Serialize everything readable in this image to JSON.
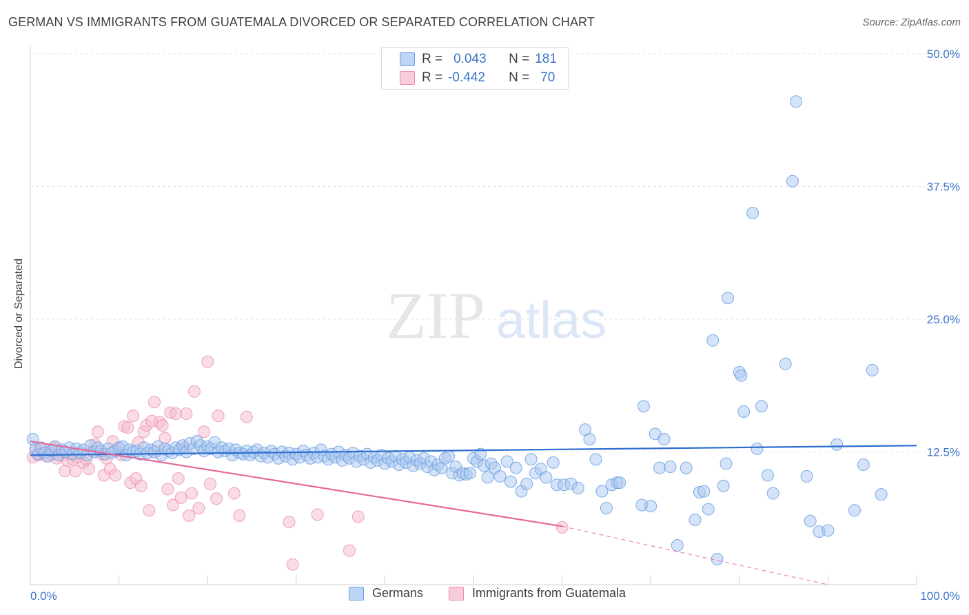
{
  "title": "GERMAN VS IMMIGRANTS FROM GUATEMALA DIVORCED OR SEPARATED CORRELATION CHART",
  "source": "Source: ZipAtlas.com",
  "watermark": {
    "zip": "ZIP",
    "atlas": "atlas"
  },
  "colors": {
    "blue_fill": "#a9c8f0",
    "blue_stroke": "#6b9fe0",
    "blue_line": "#2f6fd0",
    "pink_fill": "#f6b9cc",
    "pink_stroke": "#eb8dab",
    "pink_line": "#e5689a",
    "axis_label": "#3b73c9"
  },
  "legend": {
    "rows": [
      {
        "r_label": "R =",
        "r_value": "0.043",
        "n_label": "N =",
        "n_value": "181"
      },
      {
        "r_label": "R =",
        "r_value": "-0.442",
        "n_label": "N =",
        "n_value": "70"
      }
    ]
  },
  "bottom_legend": {
    "germans": "Germans",
    "guatemala": "Immigrants from Guatemala"
  },
  "chart_data": {
    "type": "scatter",
    "title": "GERMAN VS IMMIGRANTS FROM GUATEMALA DIVORCED OR SEPARATED CORRELATION CHART",
    "ylabel": "Divorced or Separated",
    "xlabel": "",
    "xlim": [
      0,
      100
    ],
    "ylim": [
      0,
      50
    ],
    "x_tick_labels": [
      "0.0%",
      "100.0%"
    ],
    "y_tick_labels": [
      "12.5%",
      "25.0%",
      "37.5%",
      "50.0%"
    ],
    "y_ticks": [
      12.5,
      25.0,
      37.5,
      50.0
    ],
    "grid": true,
    "legend_position": "top-center",
    "series": [
      {
        "name": "Germans",
        "r": 0.043,
        "n": 181,
        "trend": {
          "x": [
            0,
            100
          ],
          "y": [
            12.2,
            13.1
          ]
        },
        "points": [
          [
            0.3,
            13.7
          ],
          [
            0.6,
            12.8
          ],
          [
            0.9,
            12.3
          ],
          [
            1.2,
            12.9
          ],
          [
            1.6,
            12.4
          ],
          [
            2.0,
            12.1
          ],
          [
            2.4,
            12.6
          ],
          [
            2.8,
            13.0
          ],
          [
            3.2,
            12.2
          ],
          [
            3.6,
            12.7
          ],
          [
            4.0,
            12.5
          ],
          [
            4.4,
            12.9
          ],
          [
            4.8,
            12.3
          ],
          [
            5.2,
            12.8
          ],
          [
            5.6,
            12.4
          ],
          [
            6.0,
            12.7
          ],
          [
            6.4,
            12.2
          ],
          [
            6.8,
            13.1
          ],
          [
            7.2,
            12.5
          ],
          [
            7.6,
            12.9
          ],
          [
            8.0,
            12.6
          ],
          [
            8.4,
            12.3
          ],
          [
            8.8,
            12.8
          ],
          [
            9.2,
            12.4
          ],
          [
            9.6,
            12.6
          ],
          [
            10.0,
            12.9
          ],
          [
            10.4,
            13.0
          ],
          [
            10.8,
            12.2
          ],
          [
            11.2,
            12.7
          ],
          [
            11.6,
            12.5
          ],
          [
            12.0,
            12.6
          ],
          [
            12.4,
            12.3
          ],
          [
            12.8,
            12.9
          ],
          [
            13.2,
            12.4
          ],
          [
            13.6,
            12.7
          ],
          [
            14.0,
            12.5
          ],
          [
            14.4,
            13.0
          ],
          [
            14.8,
            12.2
          ],
          [
            15.2,
            12.8
          ],
          [
            15.6,
            12.6
          ],
          [
            16.0,
            12.4
          ],
          [
            16.4,
            12.9
          ],
          [
            16.8,
            12.7
          ],
          [
            17.2,
            13.1
          ],
          [
            17.6,
            12.5
          ],
          [
            18.0,
            13.3
          ],
          [
            18.4,
            12.8
          ],
          [
            18.8,
            13.5
          ],
          [
            19.2,
            13.1
          ],
          [
            19.6,
            12.6
          ],
          [
            20.0,
            13.0
          ],
          [
            20.4,
            12.8
          ],
          [
            20.8,
            13.4
          ],
          [
            21.2,
            12.5
          ],
          [
            21.6,
            12.9
          ],
          [
            22.0,
            12.6
          ],
          [
            22.4,
            12.8
          ],
          [
            22.8,
            12.2
          ],
          [
            23.2,
            12.7
          ],
          [
            23.6,
            12.4
          ],
          [
            24.0,
            12.3
          ],
          [
            24.4,
            12.6
          ],
          [
            24.8,
            12.2
          ],
          [
            25.2,
            12.5
          ],
          [
            25.6,
            12.7
          ],
          [
            26.0,
            12.1
          ],
          [
            26.4,
            12.4
          ],
          [
            26.8,
            12.0
          ],
          [
            27.2,
            12.6
          ],
          [
            27.6,
            12.3
          ],
          [
            28.0,
            11.9
          ],
          [
            28.4,
            12.5
          ],
          [
            28.8,
            12.1
          ],
          [
            29.2,
            12.4
          ],
          [
            29.6,
            11.8
          ],
          [
            30.0,
            12.3
          ],
          [
            30.4,
            12.0
          ],
          [
            30.8,
            12.6
          ],
          [
            31.2,
            12.2
          ],
          [
            31.6,
            11.9
          ],
          [
            32.0,
            12.4
          ],
          [
            32.4,
            12.0
          ],
          [
            32.8,
            12.7
          ],
          [
            33.2,
            12.1
          ],
          [
            33.6,
            11.8
          ],
          [
            34.0,
            12.3
          ],
          [
            34.4,
            12.0
          ],
          [
            34.8,
            12.5
          ],
          [
            35.2,
            11.7
          ],
          [
            35.6,
            12.2
          ],
          [
            36.0,
            11.9
          ],
          [
            36.4,
            12.4
          ],
          [
            36.8,
            11.6
          ],
          [
            37.2,
            12.1
          ],
          [
            37.6,
            11.8
          ],
          [
            38.0,
            12.3
          ],
          [
            38.4,
            11.5
          ],
          [
            38.8,
            12.0
          ],
          [
            39.2,
            11.7
          ],
          [
            39.6,
            12.2
          ],
          [
            40.0,
            11.4
          ],
          [
            40.4,
            11.9
          ],
          [
            40.8,
            11.6
          ],
          [
            41.2,
            12.1
          ],
          [
            41.6,
            11.3
          ],
          [
            42.0,
            11.8
          ],
          [
            42.4,
            11.5
          ],
          [
            42.8,
            12.0
          ],
          [
            43.2,
            11.2
          ],
          [
            43.6,
            11.7
          ],
          [
            44.0,
            11.4
          ],
          [
            44.4,
            11.9
          ],
          [
            44.8,
            11.1
          ],
          [
            45.2,
            11.6
          ],
          [
            45.6,
            10.8
          ],
          [
            46.0,
            11.3
          ],
          [
            46.4,
            11.0
          ],
          [
            46.8,
            11.9
          ],
          [
            47.2,
            12.1
          ],
          [
            47.6,
            10.5
          ],
          [
            48.0,
            11.1
          ],
          [
            48.4,
            10.3
          ],
          [
            48.8,
            10.5
          ],
          [
            49.2,
            10.4
          ],
          [
            49.6,
            10.5
          ],
          [
            50.0,
            11.9
          ],
          [
            50.4,
            11.6
          ],
          [
            50.8,
            12.3
          ],
          [
            51.2,
            11.2
          ],
          [
            51.6,
            10.1
          ],
          [
            52.0,
            11.4
          ],
          [
            52.4,
            11.0
          ],
          [
            53.0,
            10.2
          ],
          [
            53.8,
            11.6
          ],
          [
            54.2,
            9.7
          ],
          [
            54.8,
            11.0
          ],
          [
            55.4,
            8.8
          ],
          [
            56.0,
            9.5
          ],
          [
            56.5,
            11.8
          ],
          [
            57.0,
            10.5
          ],
          [
            57.6,
            10.9
          ],
          [
            58.2,
            10.1
          ],
          [
            59.0,
            11.5
          ],
          [
            59.4,
            9.4
          ],
          [
            60.2,
            9.4
          ],
          [
            61.0,
            9.5
          ],
          [
            61.8,
            9.1
          ],
          [
            62.6,
            14.6
          ],
          [
            63.1,
            13.7
          ],
          [
            63.8,
            11.8
          ],
          [
            64.5,
            8.8
          ],
          [
            65.0,
            7.2
          ],
          [
            65.6,
            9.4
          ],
          [
            66.2,
            9.6
          ],
          [
            66.5,
            9.6
          ],
          [
            69.0,
            7.5
          ],
          [
            69.2,
            16.8
          ],
          [
            70.0,
            7.4
          ],
          [
            70.5,
            14.2
          ],
          [
            71.0,
            11.0
          ],
          [
            71.5,
            13.7
          ],
          [
            72.2,
            11.1
          ],
          [
            73.0,
            3.7
          ],
          [
            74.0,
            11.0
          ],
          [
            75.0,
            6.1
          ],
          [
            75.5,
            8.7
          ],
          [
            76.0,
            8.8
          ],
          [
            76.5,
            7.1
          ],
          [
            77.0,
            23.0
          ],
          [
            77.5,
            2.4
          ],
          [
            78.2,
            9.3
          ],
          [
            78.5,
            11.4
          ],
          [
            78.7,
            27.0
          ],
          [
            80.0,
            20.0
          ],
          [
            80.2,
            19.7
          ],
          [
            80.5,
            16.3
          ],
          [
            81.5,
            35.0
          ],
          [
            82.0,
            12.8
          ],
          [
            82.5,
            16.8
          ],
          [
            83.2,
            10.3
          ],
          [
            85.2,
            20.8
          ],
          [
            86.0,
            38.0
          ],
          [
            86.4,
            45.5
          ],
          [
            88.0,
            6.0
          ],
          [
            89.0,
            5.0
          ],
          [
            91.0,
            13.2
          ],
          [
            93.0,
            7.0
          ],
          [
            94.0,
            11.3
          ],
          [
            95.0,
            20.2
          ],
          [
            96.0,
            8.5
          ],
          [
            83.8,
            8.6
          ],
          [
            87.6,
            10.2
          ],
          [
            90.0,
            5.1
          ]
        ]
      },
      {
        "name": "Immigrants from Guatemala",
        "r": -0.442,
        "n": 70,
        "trend": {
          "x": [
            0,
            60
          ],
          "y": [
            13.5,
            5.5
          ],
          "dashed_extension": {
            "x": [
              60,
              90
            ],
            "y": [
              5.5,
              0.0
            ]
          }
        },
        "points": [
          [
            0.3,
            12.0
          ],
          [
            0.6,
            12.6
          ],
          [
            0.9,
            12.2
          ],
          [
            1.2,
            12.8
          ],
          [
            1.5,
            12.4
          ],
          [
            1.8,
            12.1
          ],
          [
            2.1,
            12.7
          ],
          [
            2.4,
            12.3
          ],
          [
            2.7,
            12.9
          ],
          [
            3.0,
            11.9
          ],
          [
            3.3,
            12.5
          ],
          [
            3.6,
            12.2
          ],
          [
            3.9,
            10.7
          ],
          [
            4.2,
            11.7
          ],
          [
            4.5,
            12.3
          ],
          [
            4.8,
            11.8
          ],
          [
            5.1,
            10.7
          ],
          [
            5.4,
            12.0
          ],
          [
            5.7,
            12.4
          ],
          [
            6.0,
            11.5
          ],
          [
            6.3,
            11.8
          ],
          [
            6.6,
            10.9
          ],
          [
            7.0,
            12.6
          ],
          [
            7.3,
            13.2
          ],
          [
            7.6,
            14.4
          ],
          [
            8.0,
            12.3
          ],
          [
            8.3,
            10.3
          ],
          [
            8.6,
            11.9
          ],
          [
            9.0,
            10.9
          ],
          [
            9.3,
            13.5
          ],
          [
            9.6,
            10.3
          ],
          [
            10.0,
            12.9
          ],
          [
            10.3,
            12.2
          ],
          [
            10.6,
            14.9
          ],
          [
            11.0,
            14.8
          ],
          [
            11.3,
            9.6
          ],
          [
            11.6,
            15.9
          ],
          [
            11.9,
            10.0
          ],
          [
            12.2,
            13.4
          ],
          [
            12.5,
            9.3
          ],
          [
            12.8,
            14.4
          ],
          [
            13.1,
            15.0
          ],
          [
            13.4,
            7.0
          ],
          [
            13.7,
            15.4
          ],
          [
            14.0,
            17.2
          ],
          [
            14.3,
            12.6
          ],
          [
            14.6,
            15.3
          ],
          [
            14.9,
            15.0
          ],
          [
            15.2,
            13.8
          ],
          [
            15.5,
            9.0
          ],
          [
            15.8,
            16.2
          ],
          [
            16.1,
            7.5
          ],
          [
            16.4,
            16.1
          ],
          [
            16.7,
            10.0
          ],
          [
            17.0,
            8.2
          ],
          [
            17.3,
            12.9
          ],
          [
            17.6,
            16.1
          ],
          [
            17.9,
            6.5
          ],
          [
            18.2,
            8.6
          ],
          [
            18.5,
            18.2
          ],
          [
            19.0,
            7.2
          ],
          [
            19.6,
            14.4
          ],
          [
            20.0,
            21.0
          ],
          [
            20.3,
            9.5
          ],
          [
            21.0,
            8.1
          ],
          [
            21.2,
            15.9
          ],
          [
            23.0,
            8.6
          ],
          [
            23.6,
            6.5
          ],
          [
            24.4,
            15.8
          ],
          [
            29.2,
            5.9
          ],
          [
            29.6,
            1.9
          ],
          [
            32.4,
            6.6
          ],
          [
            36.0,
            3.2
          ],
          [
            37.0,
            6.4
          ],
          [
            60.0,
            5.4
          ]
        ]
      }
    ]
  }
}
